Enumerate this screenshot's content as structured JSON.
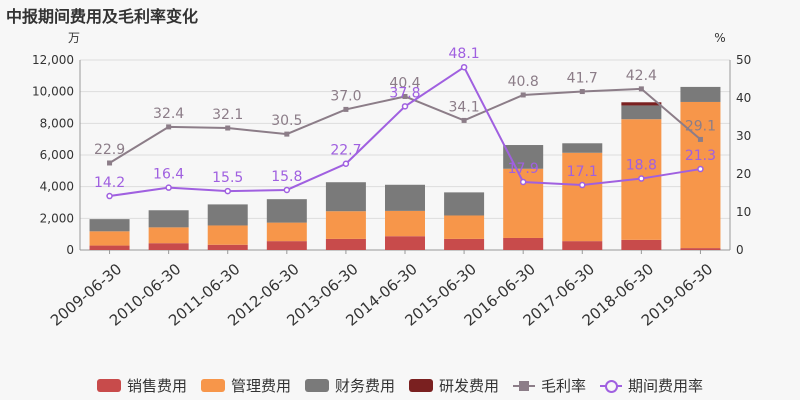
{
  "title": "中报期间费用及毛利率变化",
  "chart_data": {
    "type": "bar",
    "stacked": true,
    "title": "中报期间费用及毛利率变化",
    "categories": [
      "2009-06-30",
      "2010-06-30",
      "2011-06-30",
      "2012-06-30",
      "2013-06-30",
      "2014-06-30",
      "2015-06-30",
      "2016-06-30",
      "2017-06-30",
      "2018-06-30",
      "2019-06-30"
    ],
    "y_left": {
      "unit": "万",
      "min": 0,
      "max": 12000,
      "ticks": [
        "0",
        "2,000",
        "4,000",
        "6,000",
        "8,000",
        "10,000",
        "12,000"
      ],
      "tick_values": [
        0,
        2000,
        4000,
        6000,
        8000,
        10000,
        12000
      ]
    },
    "y_right": {
      "unit": "%",
      "min": 0,
      "max": 50,
      "ticks": [
        "0",
        "10",
        "20",
        "30",
        "40",
        "50"
      ],
      "tick_values": [
        0,
        10,
        20,
        30,
        40,
        50
      ]
    },
    "grid": true,
    "legend_position": "bottom",
    "bar_series": [
      {
        "name": "销售费用",
        "color": "#c84b4b",
        "values": [
          280,
          430,
          330,
          560,
          700,
          870,
          700,
          760,
          560,
          640,
          120
        ]
      },
      {
        "name": "管理费用",
        "color": "#f7964a",
        "values": [
          900,
          1000,
          1220,
          1170,
          1750,
          1600,
          1480,
          4370,
          5580,
          7620,
          9230
        ]
      },
      {
        "name": "财务费用",
        "color": "#7a7a7a",
        "values": [
          770,
          1080,
          1330,
          1480,
          1830,
          1650,
          1460,
          1500,
          600,
          870,
          950
        ]
      },
      {
        "name": "研发费用",
        "color": "#7a2020",
        "values": [
          0,
          0,
          0,
          0,
          0,
          0,
          0,
          0,
          0,
          200,
          0
        ]
      }
    ],
    "line_series": [
      {
        "name": "毛利率",
        "color": "#8c7d88",
        "axis": "right",
        "marker": "square",
        "values": [
          22.9,
          32.4,
          32.1,
          30.5,
          37.0,
          40.4,
          34.1,
          40.8,
          41.7,
          42.4,
          29.1
        ],
        "labels": [
          "22.9",
          "32.4",
          "32.1",
          "30.5",
          "37.0",
          "40.4",
          "34.1",
          "40.8",
          "41.7",
          "42.4",
          "29.1"
        ]
      },
      {
        "name": "期间费用率",
        "color": "#a060e0",
        "axis": "right",
        "marker": "circle",
        "values": [
          14.2,
          16.4,
          15.5,
          15.8,
          22.7,
          37.8,
          48.1,
          17.9,
          17.1,
          18.8,
          21.3
        ],
        "labels": [
          "14.2",
          "16.4",
          "15.5",
          "15.8",
          "22.7",
          "37.8",
          "48.1",
          "17.9",
          "17.1",
          "18.8",
          "21.3"
        ]
      }
    ]
  }
}
